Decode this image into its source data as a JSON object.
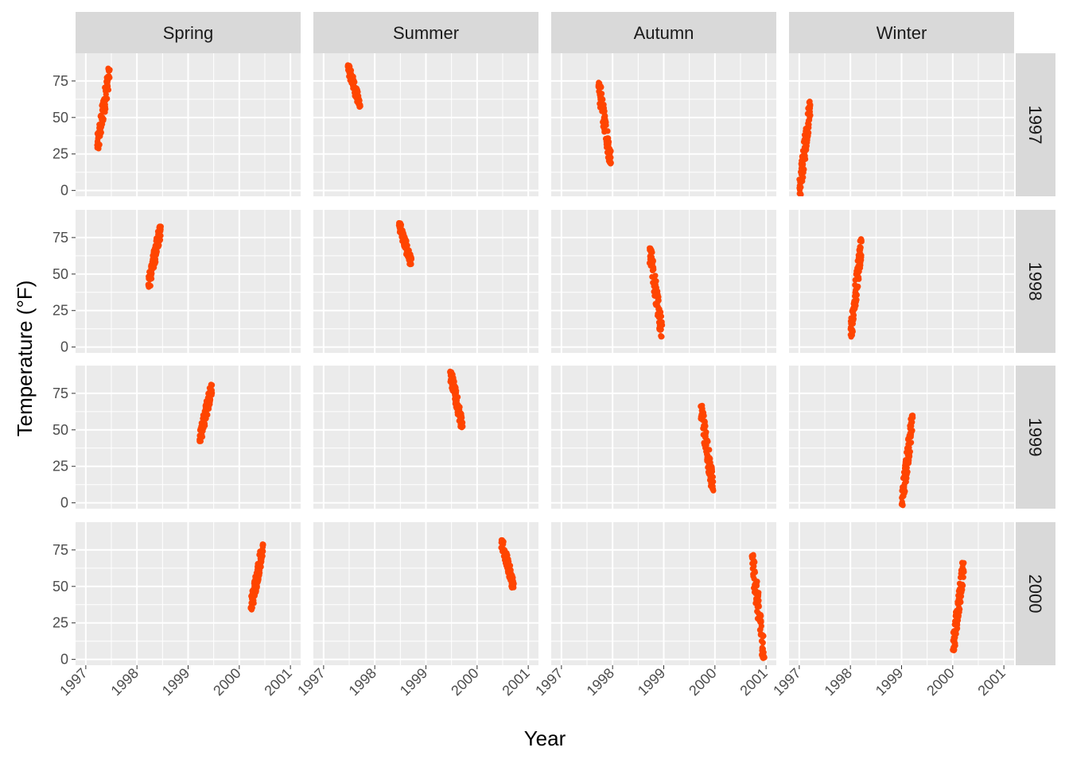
{
  "chart_data": {
    "type": "scatter",
    "xlabel": "Year",
    "ylabel": "Temperature (°F)",
    "xlim": [
      1996.8,
      2001.2
    ],
    "ylim": [
      -4,
      94
    ],
    "x_ticks": [
      1997,
      1998,
      1999,
      2000,
      2001
    ],
    "y_ticks": [
      0,
      25,
      50,
      75
    ],
    "col_facets": [
      "Spring",
      "Summer",
      "Autumn",
      "Winter"
    ],
    "row_facets": [
      "1997",
      "1998",
      "1999",
      "2000"
    ],
    "point_color": "#FF4500",
    "panel_background": "#EBEBEB",
    "strip_background": "#D9D9D9",
    "grid_color": "#FFFFFF",
    "panels": [
      {
        "row": "1997",
        "col": "Spring",
        "x_range": [
          1997.22,
          1997.47
        ],
        "y_range": [
          28,
          84
        ]
      },
      {
        "row": "1997",
        "col": "Summer",
        "x_range": [
          1997.47,
          1997.72
        ],
        "y_range": [
          57,
          86
        ]
      },
      {
        "row": "1997",
        "col": "Autumn",
        "x_range": [
          1997.72,
          1997.97
        ],
        "y_range": [
          18,
          74
        ]
      },
      {
        "row": "1997",
        "col": "Winter",
        "x_range": [
          1997.0,
          1997.22
        ],
        "y_range": [
          -3,
          61
        ]
      },
      {
        "row": "1998",
        "col": "Spring",
        "x_range": [
          1998.22,
          1998.47
        ],
        "y_range": [
          41,
          83
        ]
      },
      {
        "row": "1998",
        "col": "Summer",
        "x_range": [
          1998.47,
          1998.72
        ],
        "y_range": [
          56,
          85
        ]
      },
      {
        "row": "1998",
        "col": "Autumn",
        "x_range": [
          1998.72,
          1998.97
        ],
        "y_range": [
          7,
          68
        ]
      },
      {
        "row": "1998",
        "col": "Winter",
        "x_range": [
          1998.0,
          1998.22
        ],
        "y_range": [
          7,
          74
        ]
      },
      {
        "row": "1999",
        "col": "Spring",
        "x_range": [
          1999.22,
          1999.47
        ],
        "y_range": [
          42,
          81
        ]
      },
      {
        "row": "1999",
        "col": "Summer",
        "x_range": [
          1999.47,
          1999.72
        ],
        "y_range": [
          51,
          90
        ]
      },
      {
        "row": "1999",
        "col": "Autumn",
        "x_range": [
          1999.72,
          1999.97
        ],
        "y_range": [
          8,
          67
        ]
      },
      {
        "row": "1999",
        "col": "Winter",
        "x_range": [
          1999.0,
          1999.22
        ],
        "y_range": [
          -2,
          60
        ]
      },
      {
        "row": "2000",
        "col": "Spring",
        "x_range": [
          2000.22,
          2000.47
        ],
        "y_range": [
          34,
          79
        ]
      },
      {
        "row": "2000",
        "col": "Summer",
        "x_range": [
          2000.47,
          2000.72
        ],
        "y_range": [
          49,
          82
        ]
      },
      {
        "row": "2000",
        "col": "Autumn",
        "x_range": [
          2000.72,
          2000.97
        ],
        "y_range": [
          0,
          72
        ]
      },
      {
        "row": "2000",
        "col": "Winter",
        "x_range": [
          2000.0,
          2000.22
        ],
        "y_range": [
          6,
          67
        ]
      }
    ]
  }
}
